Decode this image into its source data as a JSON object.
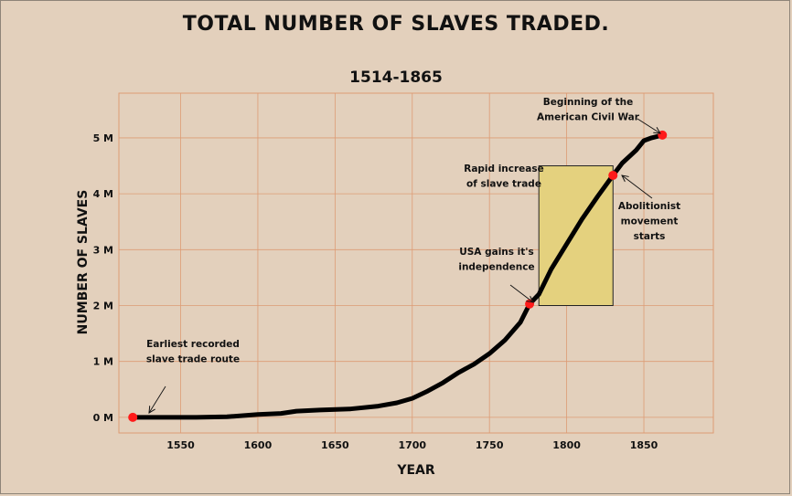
{
  "chart_data": {
    "type": "line",
    "title": "TOTAL NUMBER OF SLAVES TRADED.",
    "subtitle": "1514-1865",
    "xlabel": "YEAR",
    "ylabel": "NUMBER OF SLAVES",
    "xlim": [
      1510,
      1895
    ],
    "ylim": [
      -0.28,
      5.8
    ],
    "xticks": [
      1550,
      1600,
      1650,
      1700,
      1750,
      1800,
      1850
    ],
    "xtick_labels": [
      "1550",
      "1600",
      "1650",
      "1700",
      "1750",
      "1800",
      "1850"
    ],
    "yticks": [
      0,
      1,
      2,
      3,
      4,
      5
    ],
    "ytick_labels": [
      "0 M",
      "1 M",
      "2 M",
      "3 M",
      "4 M",
      "5 M"
    ],
    "grid": true,
    "colors": {
      "background": "#e3d0bc",
      "grid": "#dd9b74",
      "line": "#000000",
      "highlight_box": "#e4d17e",
      "marker": "#ff1a1a"
    },
    "series": [
      {
        "x": [
          1519,
          1540,
          1560,
          1580,
          1600,
          1615,
          1625,
          1640,
          1660,
          1678,
          1690,
          1700,
          1710,
          1720,
          1730,
          1740,
          1750,
          1760,
          1770,
          1776,
          1782,
          1790,
          1800,
          1810,
          1820,
          1830,
          1836,
          1845,
          1850,
          1855,
          1862
        ],
        "y": [
          0.0,
          0.0,
          0.0,
          0.01,
          0.05,
          0.07,
          0.11,
          0.13,
          0.15,
          0.2,
          0.26,
          0.34,
          0.47,
          0.62,
          0.8,
          0.95,
          1.14,
          1.38,
          1.7,
          2.03,
          2.2,
          2.65,
          3.1,
          3.55,
          3.95,
          4.33,
          4.55,
          4.78,
          4.95,
          5.0,
          5.05
        ]
      }
    ],
    "highlight_region": {
      "x": [
        1782,
        1830
      ],
      "y": [
        2.0,
        4.5
      ]
    },
    "markers": [
      {
        "x": 1519,
        "y": 0.0
      },
      {
        "x": 1776,
        "y": 2.03
      },
      {
        "x": 1830,
        "y": 4.33
      },
      {
        "x": 1862,
        "y": 5.05
      }
    ],
    "annotations": [
      {
        "lines": [
          "Earliest recorded",
          "slave trade route"
        ],
        "target_year": 1519
      },
      {
        "lines": [
          "USA gains it's",
          "independence"
        ],
        "target_year": 1776
      },
      {
        "lines": [
          "Rapid increase",
          "of slave trade"
        ],
        "target_year": 1782
      },
      {
        "lines": [
          "Abolitionist",
          "movement",
          "starts"
        ],
        "target_year": 1830
      },
      {
        "lines": [
          "Beginning of the",
          "American Civil War"
        ],
        "target_year": 1862
      }
    ]
  }
}
